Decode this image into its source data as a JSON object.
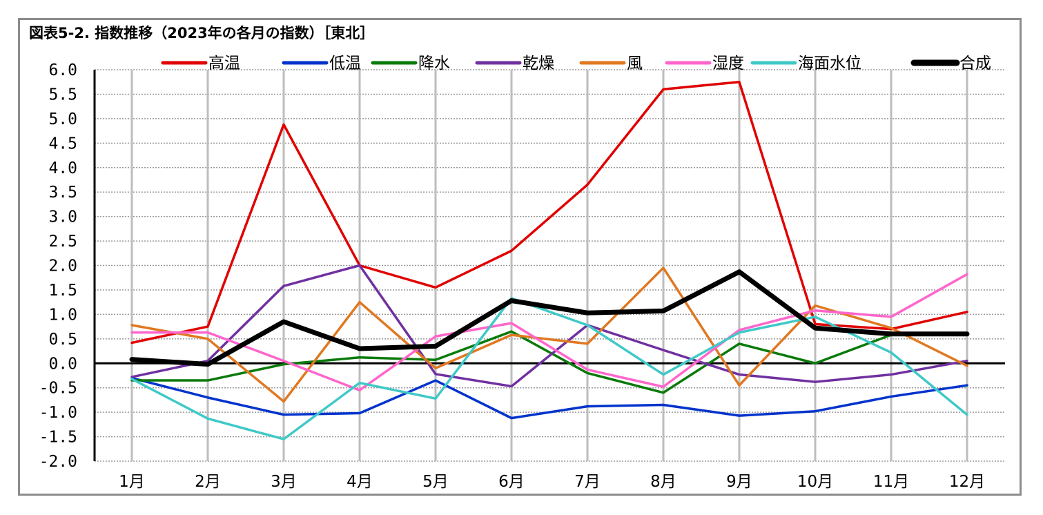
{
  "chart_data": {
    "type": "line",
    "title": "図表5-2. 指数推移（2023年の各月の指数）［東北］",
    "xlabel": "",
    "ylabel": "",
    "ylim": [
      -2.0,
      6.0
    ],
    "yticks": [
      "6.0",
      "5.5",
      "5.0",
      "4.5",
      "4.0",
      "3.5",
      "3.0",
      "2.5",
      "2.0",
      "1.5",
      "1.0",
      "0.5",
      "0.0",
      "-0.5",
      "-1.0",
      "-1.5",
      "-2.0"
    ],
    "categories": [
      "1月",
      "2月",
      "3月",
      "4月",
      "5月",
      "6月",
      "7月",
      "8月",
      "9月",
      "10月",
      "11月",
      "12月"
    ],
    "grid": true,
    "legend_position": "top",
    "series": [
      {
        "name": "高温",
        "color": "#e00000",
        "values": [
          0.42,
          0.75,
          4.88,
          2.0,
          1.55,
          2.3,
          3.65,
          5.6,
          5.75,
          0.8,
          0.7,
          1.05
        ]
      },
      {
        "name": "低温",
        "color": "#0033cc",
        "values": [
          -0.3,
          -0.7,
          -1.05,
          -1.02,
          -0.35,
          -1.12,
          -0.88,
          -0.85,
          -1.07,
          -0.98,
          -0.68,
          -0.45
        ]
      },
      {
        "name": "降水",
        "color": "#0a7a0a",
        "values": [
          -0.35,
          -0.35,
          -0.02,
          0.12,
          0.07,
          0.65,
          -0.2,
          -0.6,
          0.4,
          0.0,
          0.58,
          0.6
        ]
      },
      {
        "name": "乾燥",
        "color": "#7030a0",
        "values": [
          -0.28,
          0.05,
          1.58,
          2.0,
          -0.22,
          -0.47,
          0.78,
          0.27,
          -0.23,
          -0.38,
          -0.23,
          0.05
        ]
      },
      {
        "name": "風",
        "color": "#e07820",
        "values": [
          0.78,
          0.5,
          -0.78,
          1.25,
          -0.1,
          0.58,
          0.4,
          1.95,
          -0.45,
          1.18,
          0.72,
          -0.05
        ]
      },
      {
        "name": "湿度",
        "color": "#ff66cc",
        "values": [
          0.63,
          0.63,
          0.05,
          -0.55,
          0.55,
          0.82,
          -0.13,
          -0.48,
          0.68,
          1.08,
          0.95,
          1.82
        ]
      },
      {
        "name": "海面水位",
        "color": "#40c8c8",
        "values": [
          -0.32,
          -1.13,
          -1.55,
          -0.4,
          -0.72,
          1.33,
          0.78,
          -0.23,
          0.63,
          0.95,
          0.22,
          -1.05
        ]
      },
      {
        "name": "合成",
        "color": "#000000",
        "values": [
          0.08,
          -0.02,
          0.85,
          0.3,
          0.35,
          1.28,
          1.03,
          1.07,
          1.87,
          0.72,
          0.6,
          0.6
        ]
      }
    ]
  }
}
